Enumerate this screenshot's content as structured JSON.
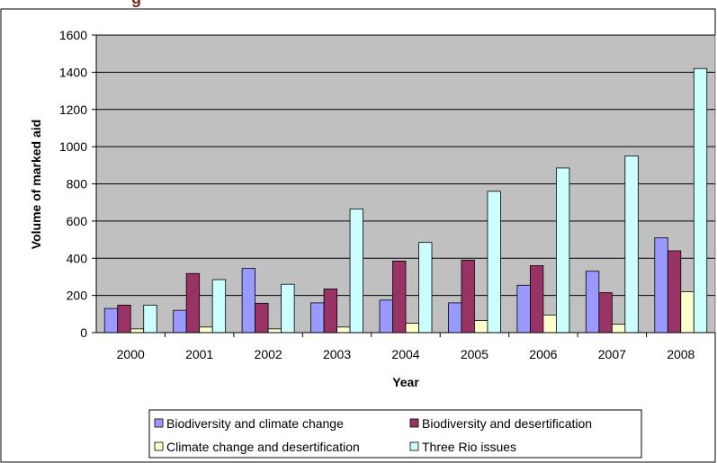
{
  "header": {
    "fragment": "g"
  },
  "chart_data": {
    "type": "bar",
    "title": "",
    "xlabel": "Year",
    "ylabel": "Volume of marked aid",
    "ylim": [
      0,
      1600
    ],
    "yticks": [
      "0",
      "200",
      "400",
      "600",
      "800",
      "1000",
      "1200",
      "1400",
      "1600"
    ],
    "categories": [
      "2000",
      "2001",
      "2002",
      "2003",
      "2004",
      "2005",
      "2006",
      "2007",
      "2008"
    ],
    "grid": true,
    "legend_position": "bottom",
    "series": [
      {
        "name": "Biodiversity and climate change",
        "color": "#9999ff",
        "values": [
          130,
          120,
          345,
          160,
          175,
          160,
          255,
          330,
          510
        ]
      },
      {
        "name": "Biodiversity and desertification",
        "color": "#993366",
        "values": [
          148,
          318,
          158,
          235,
          385,
          390,
          360,
          215,
          440
        ]
      },
      {
        "name": "Climate change and desertification",
        "color": "#ffffcc",
        "values": [
          20,
          30,
          20,
          30,
          50,
          65,
          95,
          45,
          220
        ]
      },
      {
        "name": "Three Rio issues",
        "color": "#ccffff",
        "values": [
          148,
          285,
          260,
          665,
          485,
          760,
          885,
          950,
          1420
        ]
      }
    ],
    "plot_background": "#c0c0c0"
  }
}
